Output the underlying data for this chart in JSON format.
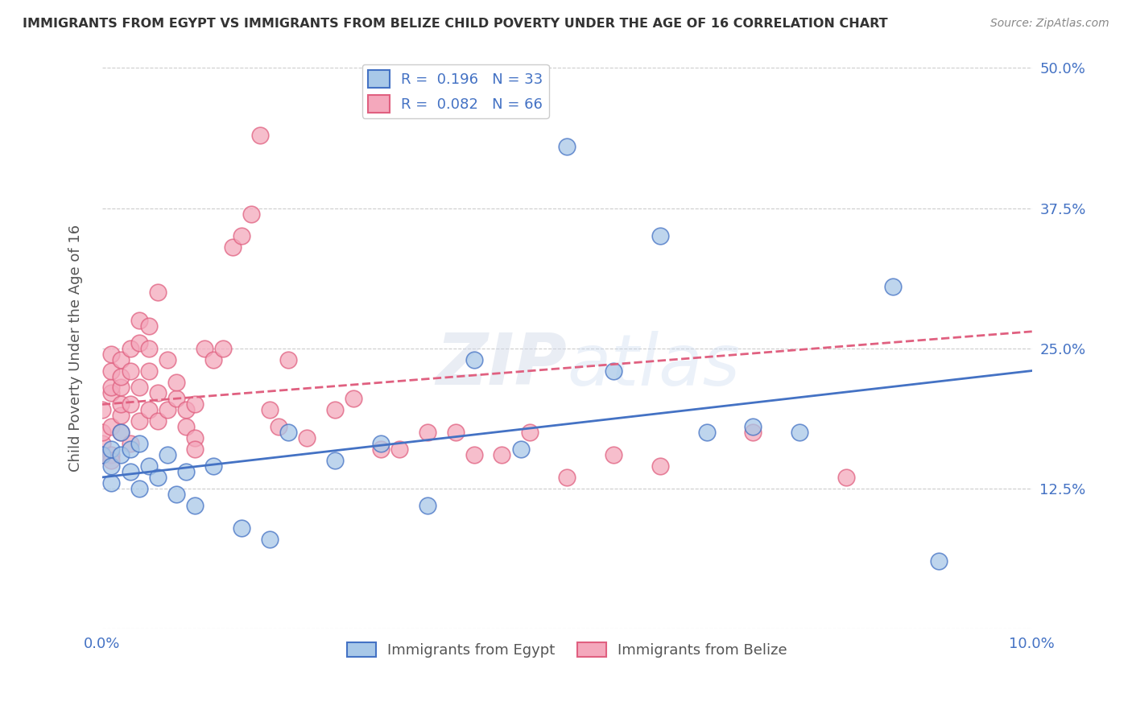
{
  "title": "IMMIGRANTS FROM EGYPT VS IMMIGRANTS FROM BELIZE CHILD POVERTY UNDER THE AGE OF 16 CORRELATION CHART",
  "source": "Source: ZipAtlas.com",
  "ylabel": "Child Poverty Under the Age of 16",
  "xmin": 0.0,
  "xmax": 0.1,
  "ymin": 0.0,
  "ymax": 0.5,
  "yticks": [
    0.0,
    0.125,
    0.25,
    0.375,
    0.5
  ],
  "ytick_labels": [
    "",
    "12.5%",
    "25.0%",
    "37.5%",
    "50.0%"
  ],
  "egypt_R": 0.196,
  "egypt_N": 33,
  "belize_R": 0.082,
  "belize_N": 66,
  "egypt_color": "#a8c8e8",
  "belize_color": "#f4a8bc",
  "egypt_line_color": "#4472c4",
  "belize_line_color": "#e06080",
  "egypt_scatter_x": [
    0.0,
    0.001,
    0.001,
    0.001,
    0.002,
    0.002,
    0.003,
    0.003,
    0.004,
    0.004,
    0.005,
    0.006,
    0.007,
    0.008,
    0.009,
    0.01,
    0.012,
    0.015,
    0.018,
    0.02,
    0.025,
    0.03,
    0.035,
    0.04,
    0.045,
    0.05,
    0.055,
    0.06,
    0.065,
    0.07,
    0.075,
    0.085,
    0.09
  ],
  "egypt_scatter_y": [
    0.155,
    0.16,
    0.145,
    0.13,
    0.155,
    0.175,
    0.16,
    0.14,
    0.165,
    0.125,
    0.145,
    0.135,
    0.155,
    0.12,
    0.14,
    0.11,
    0.145,
    0.09,
    0.08,
    0.175,
    0.15,
    0.165,
    0.11,
    0.24,
    0.16,
    0.43,
    0.23,
    0.35,
    0.175,
    0.18,
    0.175,
    0.305,
    0.06
  ],
  "belize_scatter_x": [
    0.0,
    0.0,
    0.0,
    0.0,
    0.001,
    0.001,
    0.001,
    0.001,
    0.001,
    0.001,
    0.001,
    0.002,
    0.002,
    0.002,
    0.002,
    0.002,
    0.002,
    0.003,
    0.003,
    0.003,
    0.003,
    0.004,
    0.004,
    0.004,
    0.004,
    0.005,
    0.005,
    0.005,
    0.005,
    0.006,
    0.006,
    0.006,
    0.007,
    0.007,
    0.008,
    0.008,
    0.009,
    0.009,
    0.01,
    0.01,
    0.01,
    0.011,
    0.012,
    0.013,
    0.014,
    0.015,
    0.016,
    0.017,
    0.018,
    0.019,
    0.02,
    0.022,
    0.025,
    0.027,
    0.03,
    0.032,
    0.035,
    0.038,
    0.04,
    0.043,
    0.046,
    0.05,
    0.055,
    0.06,
    0.07,
    0.08
  ],
  "belize_scatter_y": [
    0.155,
    0.165,
    0.175,
    0.195,
    0.155,
    0.18,
    0.21,
    0.215,
    0.23,
    0.245,
    0.15,
    0.175,
    0.19,
    0.2,
    0.215,
    0.225,
    0.24,
    0.25,
    0.165,
    0.2,
    0.23,
    0.255,
    0.275,
    0.185,
    0.215,
    0.195,
    0.23,
    0.25,
    0.27,
    0.185,
    0.21,
    0.3,
    0.195,
    0.24,
    0.205,
    0.22,
    0.195,
    0.18,
    0.17,
    0.2,
    0.16,
    0.25,
    0.24,
    0.25,
    0.34,
    0.35,
    0.37,
    0.44,
    0.195,
    0.18,
    0.24,
    0.17,
    0.195,
    0.205,
    0.16,
    0.16,
    0.175,
    0.175,
    0.155,
    0.155,
    0.175,
    0.135,
    0.155,
    0.145,
    0.175,
    0.135
  ],
  "egypt_line_y0": 0.135,
  "egypt_line_y1": 0.23,
  "belize_line_y0": 0.2,
  "belize_line_y1": 0.265
}
